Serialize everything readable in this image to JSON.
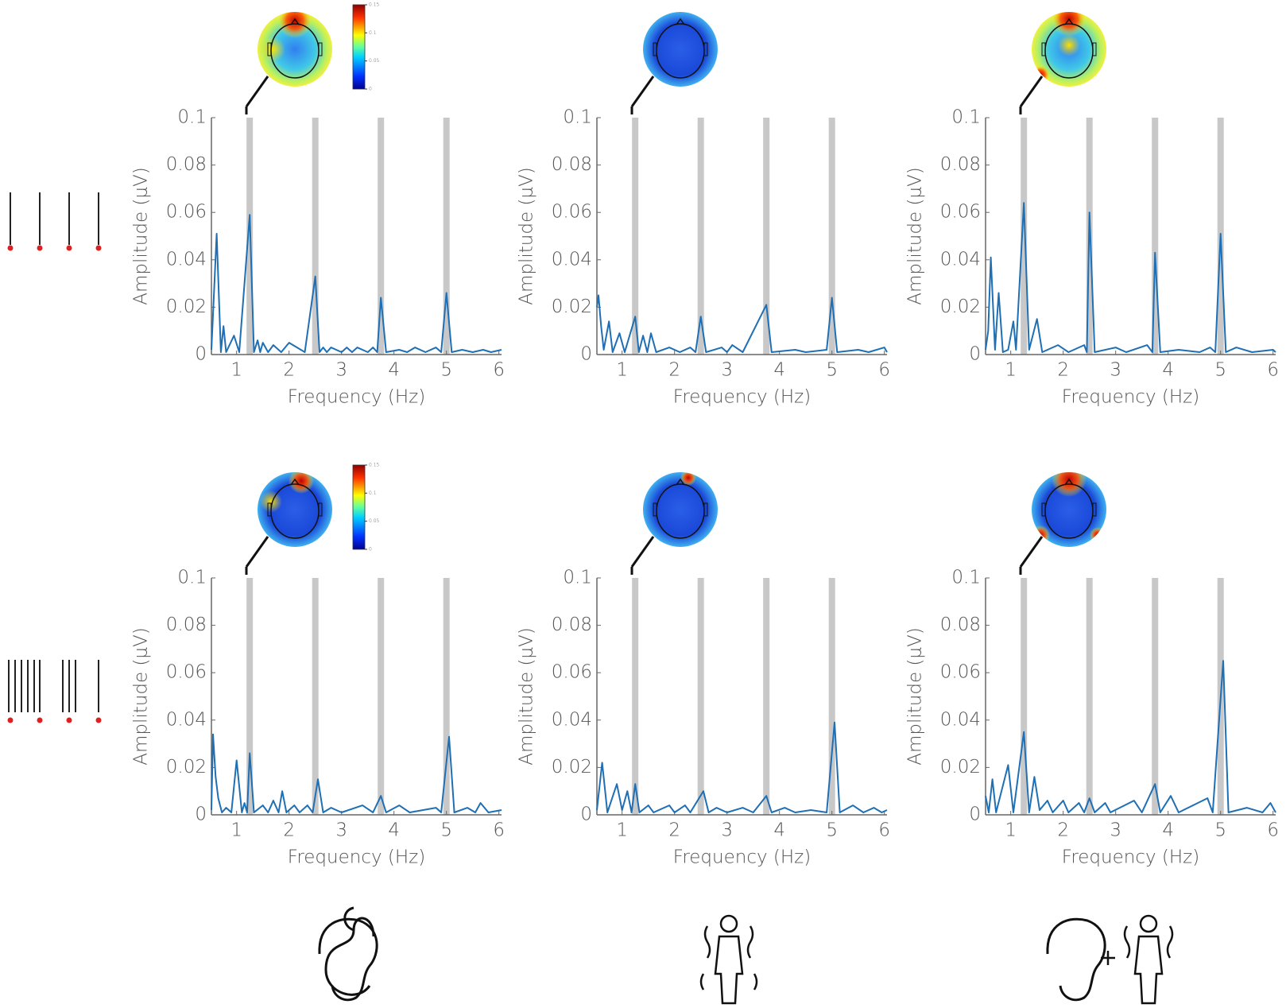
{
  "chart_data": [
    {
      "type": "line",
      "ylabel": "Amplitude (μV)",
      "xlabel": "Frequency (Hz)",
      "xlim": [
        0.52,
        6.05
      ],
      "ylim": [
        0,
        0.1
      ],
      "xticks": [
        1,
        2,
        3,
        4,
        5,
        6
      ],
      "yticks": [
        0,
        0.02,
        0.04,
        0.06,
        0.08,
        0.1
      ],
      "bands": [
        1.25,
        2.5,
        3.75,
        5
      ],
      "colorbar_ticks": [
        0,
        0.05,
        0.1,
        0.15
      ],
      "x": [
        0.52,
        0.62,
        0.7,
        0.75,
        0.8,
        0.95,
        1.05,
        1.25,
        1.33,
        1.4,
        1.45,
        1.5,
        1.6,
        1.7,
        1.85,
        2.0,
        2.3,
        2.5,
        2.58,
        2.65,
        2.72,
        2.8,
        3.0,
        3.1,
        3.2,
        3.3,
        3.5,
        3.6,
        3.68,
        3.75,
        3.85,
        4.1,
        4.25,
        4.4,
        4.6,
        4.8,
        4.9,
        5.0,
        5.1,
        5.3,
        5.5,
        5.7,
        5.85,
        6.05
      ],
      "series": [
        {
          "color": "#1f6fb4",
          "values": [
            0.002,
            0.051,
            0.001,
            0.012,
            0.001,
            0.008,
            0.001,
            0.059,
            0.001,
            0.006,
            0.001,
            0.005,
            0.001,
            0.004,
            0.001,
            0.005,
            0.001,
            0.033,
            0.001,
            0.003,
            0.001,
            0.003,
            0.001,
            0.003,
            0.001,
            0.003,
            0.001,
            0.003,
            0.001,
            0.024,
            0.001,
            0.002,
            0.001,
            0.003,
            0.001,
            0.003,
            0.001,
            0.026,
            0.001,
            0.002,
            0.001,
            0.002,
            0.001,
            0.002
          ]
        }
      ]
    },
    {
      "type": "line",
      "ylabel": "Amplitude (μV)",
      "xlabel": "Frequency (Hz)",
      "xlim": [
        0.52,
        6.05
      ],
      "ylim": [
        0,
        0.1
      ],
      "xticks": [
        1,
        2,
        3,
        4,
        5,
        6
      ],
      "yticks": [
        0,
        0.02,
        0.04,
        0.06,
        0.08,
        0.1
      ],
      "bands": [
        1.25,
        2.5,
        3.75,
        5
      ],
      "x": [
        0.52,
        0.55,
        0.6,
        0.65,
        0.75,
        0.82,
        0.95,
        1.05,
        1.25,
        1.32,
        1.4,
        1.48,
        1.55,
        1.65,
        1.9,
        2.1,
        2.3,
        2.4,
        2.5,
        2.6,
        2.9,
        3.0,
        3.1,
        3.3,
        3.75,
        3.85,
        4.3,
        4.5,
        4.9,
        5.0,
        5.1,
        5.5,
        5.7,
        6.0,
        6.05
      ],
      "series": [
        {
          "color": "#1f6fb4",
          "values": [
            0.02,
            0.025,
            0.012,
            0.002,
            0.014,
            0.001,
            0.009,
            0.001,
            0.016,
            0.001,
            0.008,
            0.001,
            0.009,
            0.001,
            0.003,
            0.001,
            0.003,
            0.001,
            0.016,
            0.001,
            0.003,
            0.001,
            0.004,
            0.001,
            0.021,
            0.001,
            0.002,
            0.001,
            0.002,
            0.024,
            0.001,
            0.002,
            0.001,
            0.003,
            0.001
          ]
        }
      ]
    },
    {
      "type": "line",
      "ylabel": "Amplitude (μV)",
      "xlabel": "Frequency (Hz)",
      "xlim": [
        0.52,
        6.05
      ],
      "ylim": [
        0,
        0.1
      ],
      "xticks": [
        1,
        2,
        3,
        4,
        5,
        6
      ],
      "yticks": [
        0,
        0.02,
        0.04,
        0.06,
        0.08,
        0.1
      ],
      "bands": [
        1.25,
        2.5,
        3.75,
        5
      ],
      "x": [
        0.52,
        0.57,
        0.62,
        0.7,
        0.77,
        0.85,
        0.95,
        1.05,
        1.1,
        1.25,
        1.35,
        1.5,
        1.6,
        1.9,
        2.1,
        2.4,
        2.45,
        2.5,
        2.6,
        3.0,
        3.2,
        3.6,
        3.7,
        3.75,
        3.85,
        4.2,
        4.6,
        4.8,
        4.9,
        5.0,
        5.1,
        5.3,
        5.6,
        6.0,
        6.05
      ],
      "series": [
        {
          "color": "#1f6fb4",
          "values": [
            0.002,
            0.01,
            0.041,
            0.002,
            0.026,
            0.001,
            0.002,
            0.014,
            0.002,
            0.064,
            0.002,
            0.015,
            0.001,
            0.004,
            0.001,
            0.004,
            0.001,
            0.06,
            0.001,
            0.003,
            0.001,
            0.004,
            0.001,
            0.043,
            0.001,
            0.002,
            0.001,
            0.003,
            0.001,
            0.051,
            0.001,
            0.003,
            0.001,
            0.002,
            0.001
          ]
        }
      ]
    },
    {
      "type": "line",
      "ylabel": "Amplitude (μV)",
      "xlabel": "Frequency (Hz)",
      "xlim": [
        0.52,
        6.05
      ],
      "ylim": [
        0,
        0.1
      ],
      "xticks": [
        1,
        2,
        3,
        4,
        5,
        6
      ],
      "yticks": [
        0,
        0.02,
        0.04,
        0.06,
        0.08,
        0.1
      ],
      "bands": [
        1.25,
        2.5,
        3.75,
        5
      ],
      "colorbar_ticks": [
        0,
        0.05,
        0.1,
        0.15
      ],
      "x": [
        0.52,
        0.55,
        0.6,
        0.65,
        0.72,
        0.8,
        0.9,
        1.0,
        1.1,
        1.15,
        1.2,
        1.25,
        1.33,
        1.5,
        1.6,
        1.7,
        1.8,
        1.87,
        1.95,
        2.1,
        2.2,
        2.35,
        2.45,
        2.55,
        2.65,
        2.8,
        3.0,
        3.4,
        3.6,
        3.75,
        3.85,
        4.1,
        4.3,
        4.8,
        4.9,
        5.05,
        5.15,
        5.4,
        5.55,
        5.65,
        5.8,
        6.05
      ],
      "series": [
        {
          "color": "#1f6fb4",
          "values": [
            0.002,
            0.034,
            0.016,
            0.007,
            0.001,
            0.003,
            0.001,
            0.023,
            0.001,
            0.005,
            0.001,
            0.026,
            0.001,
            0.004,
            0.001,
            0.006,
            0.001,
            0.01,
            0.001,
            0.004,
            0.001,
            0.004,
            0.001,
            0.015,
            0.001,
            0.003,
            0.001,
            0.004,
            0.001,
            0.008,
            0.001,
            0.004,
            0.001,
            0.003,
            0.001,
            0.033,
            0.001,
            0.003,
            0.001,
            0.005,
            0.001,
            0.002
          ]
        }
      ]
    },
    {
      "type": "line",
      "ylabel": "Amplitude (μV)",
      "xlabel": "Frequency (Hz)",
      "xlim": [
        0.52,
        6.05
      ],
      "ylim": [
        0,
        0.1
      ],
      "xticks": [
        1,
        2,
        3,
        4,
        5,
        6
      ],
      "yticks": [
        0,
        0.02,
        0.04,
        0.06,
        0.08,
        0.1
      ],
      "bands": [
        1.25,
        2.5,
        3.75,
        5
      ],
      "x": [
        0.52,
        0.62,
        0.72,
        0.9,
        1.0,
        1.1,
        1.18,
        1.25,
        1.33,
        1.5,
        1.6,
        1.9,
        2.0,
        2.2,
        2.3,
        2.55,
        2.65,
        2.8,
        3.0,
        3.3,
        3.5,
        3.75,
        3.85,
        4.1,
        4.3,
        4.6,
        4.9,
        5.05,
        5.15,
        5.4,
        5.6,
        5.8,
        5.95,
        6.05
      ],
      "series": [
        {
          "color": "#1f6fb4",
          "values": [
            0.002,
            0.022,
            0.001,
            0.013,
            0.002,
            0.01,
            0.001,
            0.013,
            0.001,
            0.004,
            0.001,
            0.004,
            0.001,
            0.004,
            0.001,
            0.01,
            0.001,
            0.003,
            0.001,
            0.003,
            0.001,
            0.008,
            0.001,
            0.003,
            0.001,
            0.002,
            0.001,
            0.039,
            0.001,
            0.004,
            0.001,
            0.003,
            0.001,
            0.002
          ]
        }
      ]
    },
    {
      "type": "line",
      "ylabel": "Amplitude (μV)",
      "xlabel": "Frequency (Hz)",
      "xlim": [
        0.52,
        6.05
      ],
      "ylim": [
        0,
        0.1
      ],
      "xticks": [
        1,
        2,
        3,
        4,
        5,
        6
      ],
      "yticks": [
        0,
        0.02,
        0.04,
        0.06,
        0.08,
        0.1
      ],
      "bands": [
        1.25,
        2.5,
        3.75,
        5
      ],
      "x": [
        0.52,
        0.58,
        0.65,
        0.72,
        0.95,
        1.05,
        1.25,
        1.35,
        1.45,
        1.55,
        1.7,
        1.8,
        2.0,
        2.1,
        2.3,
        2.4,
        2.5,
        2.6,
        2.8,
        2.9,
        3.35,
        3.5,
        3.75,
        3.85,
        4.05,
        4.2,
        4.75,
        4.85,
        5.05,
        5.15,
        5.5,
        5.8,
        5.95,
        6.05
      ],
      "series": [
        {
          "color": "#1f6fb4",
          "values": [
            0.008,
            0.001,
            0.015,
            0.001,
            0.021,
            0.001,
            0.035,
            0.001,
            0.016,
            0.002,
            0.006,
            0.001,
            0.006,
            0.001,
            0.005,
            0.001,
            0.007,
            0.001,
            0.005,
            0.001,
            0.006,
            0.001,
            0.013,
            0.001,
            0.008,
            0.001,
            0.007,
            0.001,
            0.065,
            0.001,
            0.003,
            0.001,
            0.005,
            0.001
          ]
        }
      ]
    }
  ]
}
